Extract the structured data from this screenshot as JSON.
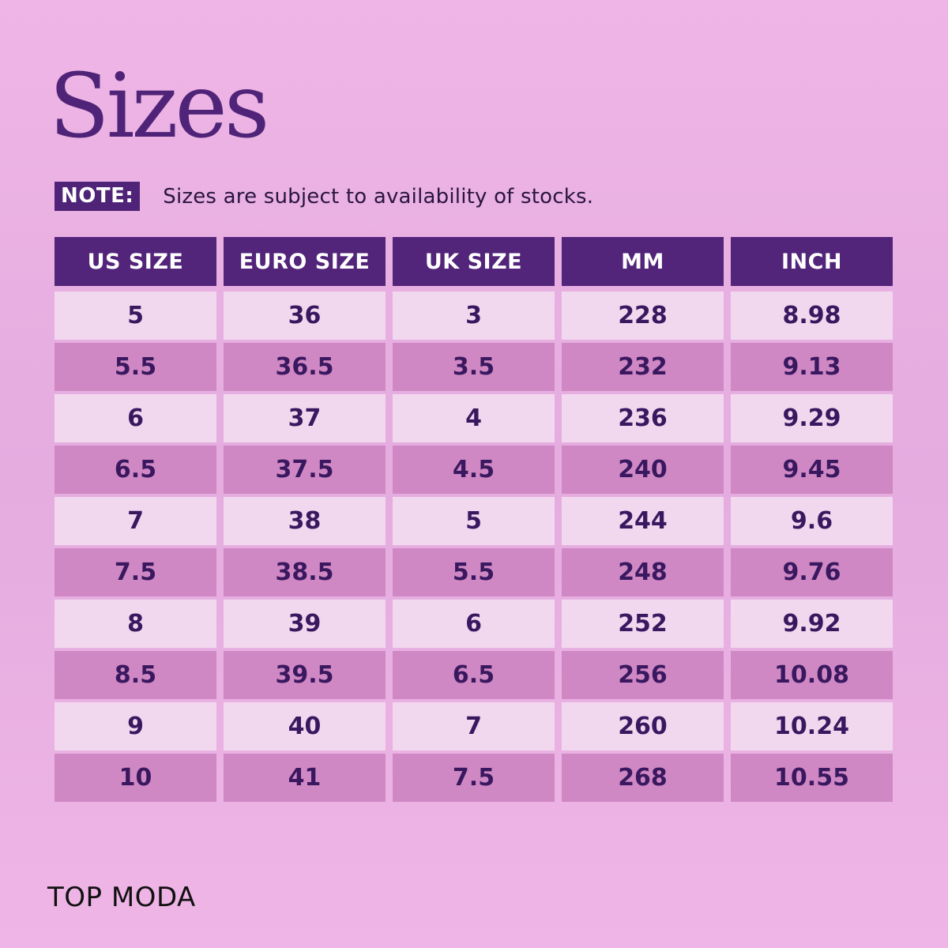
{
  "title": "Sizes",
  "note": {
    "label": "NOTE:",
    "text": "Sizes are subject to availability of stocks."
  },
  "table": {
    "headers": [
      "US SIZE",
      "EURO SIZE",
      "UK SIZE",
      "MM",
      "INCH"
    ],
    "rows": [
      [
        "5",
        "36",
        "3",
        "228",
        "8.98"
      ],
      [
        "5.5",
        "36.5",
        "3.5",
        "232",
        "9.13"
      ],
      [
        "6",
        "37",
        "4",
        "236",
        "9.29"
      ],
      [
        "6.5",
        "37.5",
        "4.5",
        "240",
        "9.45"
      ],
      [
        "7",
        "38",
        "5",
        "244",
        "9.6"
      ],
      [
        "7.5",
        "38.5",
        "5.5",
        "248",
        "9.76"
      ],
      [
        "8",
        "39",
        "6",
        "252",
        "9.92"
      ],
      [
        "8.5",
        "39.5",
        "6.5",
        "256",
        "10.08"
      ],
      [
        "9",
        "40",
        "7",
        "260",
        "10.24"
      ],
      [
        "10",
        "41",
        "7.5",
        "268",
        "10.55"
      ]
    ]
  },
  "brand": "TOP MODA",
  "colors": {
    "background": "#ecb3e4",
    "header_fill": "#52247a",
    "row_light": "#f2d8ee",
    "row_dark": "#cf88c3",
    "text_dark": "#3a1860"
  }
}
